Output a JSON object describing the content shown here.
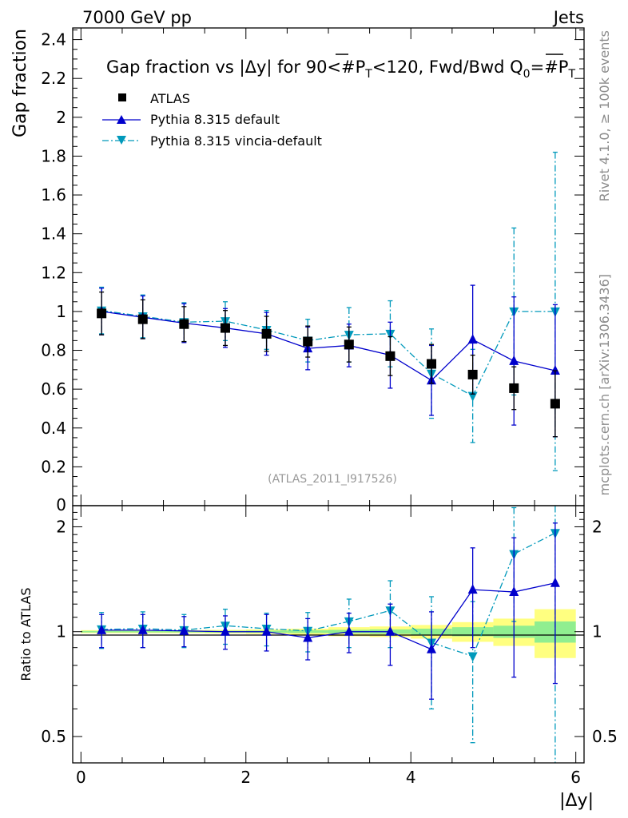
{
  "header": {
    "left": "7000 GeV pp",
    "right": "Jets",
    "side_top": "Rivet 4.1.0, ≥ 100k events",
    "side_bottom": "mcplots.cern.ch [arXiv:1306.3436]"
  },
  "chart_data": [
    {
      "type": "scatter",
      "title": "Gap fraction vs |Δy| for 90<#P_T<120, Fwd/Bwd Q_0=#P_T",
      "title_parts": {
        "a": "Gap fraction vs |Δy| for 90<#",
        "p1": "P",
        "t1": "T",
        "b": "<120, Fwd/Bwd Q",
        "zero": "0",
        "c": "=#",
        "p2": "P",
        "t2": "T"
      },
      "ylabel": "Gap fraction",
      "xlabel": "|Δy|",
      "watermark": "(ATLAS_2011_I917526)",
      "xlim": [
        -0.1,
        6.1
      ],
      "ylim": [
        0,
        2.46
      ],
      "yticks": [
        0.2,
        0.4,
        0.6,
        0.8,
        1,
        1.2,
        1.4,
        1.6,
        1.8,
        2,
        2.2,
        2.4
      ],
      "ytick_labels": [
        "0.2",
        "0.4",
        "0.6",
        "0.8",
        "1",
        "1.2",
        "1.4",
        "1.6",
        "1.8",
        "2",
        "2.2",
        "2.4"
      ],
      "y_zero_label": "0",
      "x": [
        0.25,
        0.75,
        1.25,
        1.75,
        2.25,
        2.75,
        3.25,
        3.75,
        4.25,
        4.75,
        5.25,
        5.75
      ],
      "series": [
        {
          "name": "ATLAS",
          "color": "#000000",
          "marker": "square",
          "values": [
            0.99,
            0.96,
            0.935,
            0.915,
            0.885,
            0.845,
            0.83,
            0.77,
            0.73,
            0.675,
            0.605,
            0.525
          ],
          "err": [
            0.11,
            0.1,
            0.09,
            0.09,
            0.09,
            0.08,
            0.09,
            0.1,
            0.1,
            0.1,
            0.11,
            0.17
          ]
        },
        {
          "name": "Pythia 8.315 default",
          "color": "#0000cc",
          "marker": "triangle-up",
          "line": "solid",
          "values": [
            1.0,
            0.97,
            0.94,
            0.915,
            0.885,
            0.81,
            0.825,
            0.775,
            0.645,
            0.855,
            0.745,
            0.695
          ],
          "err": [
            0.12,
            0.11,
            0.1,
            0.1,
            0.11,
            0.11,
            0.11,
            0.17,
            0.18,
            0.28,
            0.33,
            0.34
          ]
        },
        {
          "name": "Pythia 8.315 vincia-default",
          "color": "#0099bb",
          "marker": "triangle-down",
          "line": "dashdot",
          "values": [
            1.005,
            0.975,
            0.945,
            0.95,
            0.905,
            0.85,
            0.88,
            0.885,
            0.68,
            0.565,
            1.0,
            1.0
          ],
          "err": [
            0.12,
            0.11,
            0.1,
            0.1,
            0.1,
            0.11,
            0.14,
            0.17,
            0.23,
            0.24,
            0.43,
            0.82
          ]
        }
      ]
    },
    {
      "type": "scatter",
      "ylabel": "Ratio to ATLAS",
      "scale": "log",
      "ylim": [
        0.42,
        2.3
      ],
      "yticks": [
        0.5,
        1,
        2
      ],
      "ytick_labels": [
        "0.5",
        "1",
        "2"
      ],
      "xticks": [
        0,
        2,
        4,
        6
      ],
      "xtick_labels": [
        "0",
        "2",
        "4",
        "6"
      ],
      "bands": {
        "inner_color": "#90ee90",
        "outer_color": "#ffff80",
        "bins": [
          {
            "x0": 0.0,
            "x1": 0.5,
            "inner": 0.005,
            "outer": 0.01
          },
          {
            "x0": 0.5,
            "x1": 1.0,
            "inner": 0.005,
            "outer": 0.01
          },
          {
            "x0": 1.0,
            "x1": 1.5,
            "inner": 0.005,
            "outer": 0.01
          },
          {
            "x0": 1.5,
            "x1": 2.0,
            "inner": 0.006,
            "outer": 0.012
          },
          {
            "x0": 2.0,
            "x1": 2.5,
            "inner": 0.007,
            "outer": 0.015
          },
          {
            "x0": 2.5,
            "x1": 3.0,
            "inner": 0.009,
            "outer": 0.02
          },
          {
            "x0": 3.0,
            "x1": 3.5,
            "inner": 0.012,
            "outer": 0.03
          },
          {
            "x0": 3.5,
            "x1": 4.0,
            "inner": 0.015,
            "outer": 0.035
          },
          {
            "x0": 4.0,
            "x1": 4.5,
            "inner": 0.02,
            "outer": 0.045
          },
          {
            "x0": 4.5,
            "x1": 5.0,
            "inner": 0.03,
            "outer": 0.065
          },
          {
            "x0": 5.0,
            "x1": 5.5,
            "inner": 0.04,
            "outer": 0.09
          },
          {
            "x0": 5.5,
            "x1": 6.0,
            "inner": 0.07,
            "outer": 0.16
          }
        ]
      },
      "series": [
        {
          "name": "Pythia 8.315 default",
          "values": [
            1.01,
            1.01,
            1.005,
            1.0,
            1.0,
            0.96,
            1.0,
            1.0,
            0.89,
            1.32,
            1.3,
            1.38
          ],
          "err": [
            0.11,
            0.11,
            0.1,
            0.11,
            0.12,
            0.13,
            0.13,
            0.2,
            0.25,
            0.42,
            0.56,
            0.67
          ]
        },
        {
          "name": "Pythia 8.315 vincia-default",
          "values": [
            1.015,
            1.02,
            1.01,
            1.04,
            1.02,
            1.005,
            1.07,
            1.15,
            0.93,
            0.85,
            1.67,
            1.92
          ],
          "err": [
            0.12,
            0.12,
            0.11,
            0.12,
            0.11,
            0.13,
            0.17,
            0.25,
            0.33,
            0.37,
            0.6,
            1.58
          ]
        }
      ]
    }
  ]
}
